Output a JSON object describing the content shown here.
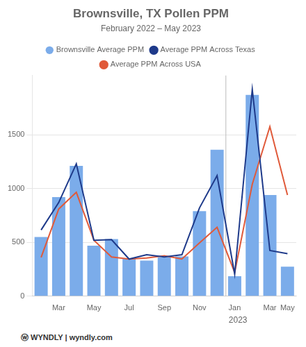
{
  "chart_data": {
    "type": "bar",
    "title": "Brownsville, TX Pollen PPM",
    "subtitle": "February 2022 – May 2023",
    "categories": [
      null,
      "Mar",
      null,
      "May",
      null,
      "Jul",
      null,
      "Sep",
      null,
      "Nov",
      null,
      "Jan",
      null,
      "Mar",
      "May"
    ],
    "series": [
      {
        "name": "Brownsville Average PPM",
        "type": "bar",
        "color": "#7bacea",
        "values": [
          550,
          920,
          1210,
          470,
          530,
          350,
          330,
          360,
          370,
          790,
          1360,
          185,
          1870,
          940,
          275
        ]
      },
      {
        "name": "Average PPM Across Texas",
        "type": "line",
        "color": "#1e3a8a",
        "values": [
          615,
          870,
          1230,
          520,
          525,
          345,
          385,
          365,
          385,
          820,
          1120,
          205,
          1920,
          425,
          395
        ]
      },
      {
        "name": "Average PPM Across USA",
        "type": "line",
        "color": "#e05a3a",
        "values": [
          360,
          810,
          965,
          520,
          365,
          345,
          355,
          375,
          345,
          495,
          640,
          220,
          1040,
          1575,
          940
        ]
      }
    ],
    "ylim": [
      0,
      2050
    ],
    "yticks": [
      0,
      500,
      1000,
      1500
    ],
    "grid": true,
    "legend": "top",
    "annotations": [
      {
        "text": "2023"
      }
    ],
    "footer": "ⓦ  WYNDLY  |  wyndly.com"
  }
}
